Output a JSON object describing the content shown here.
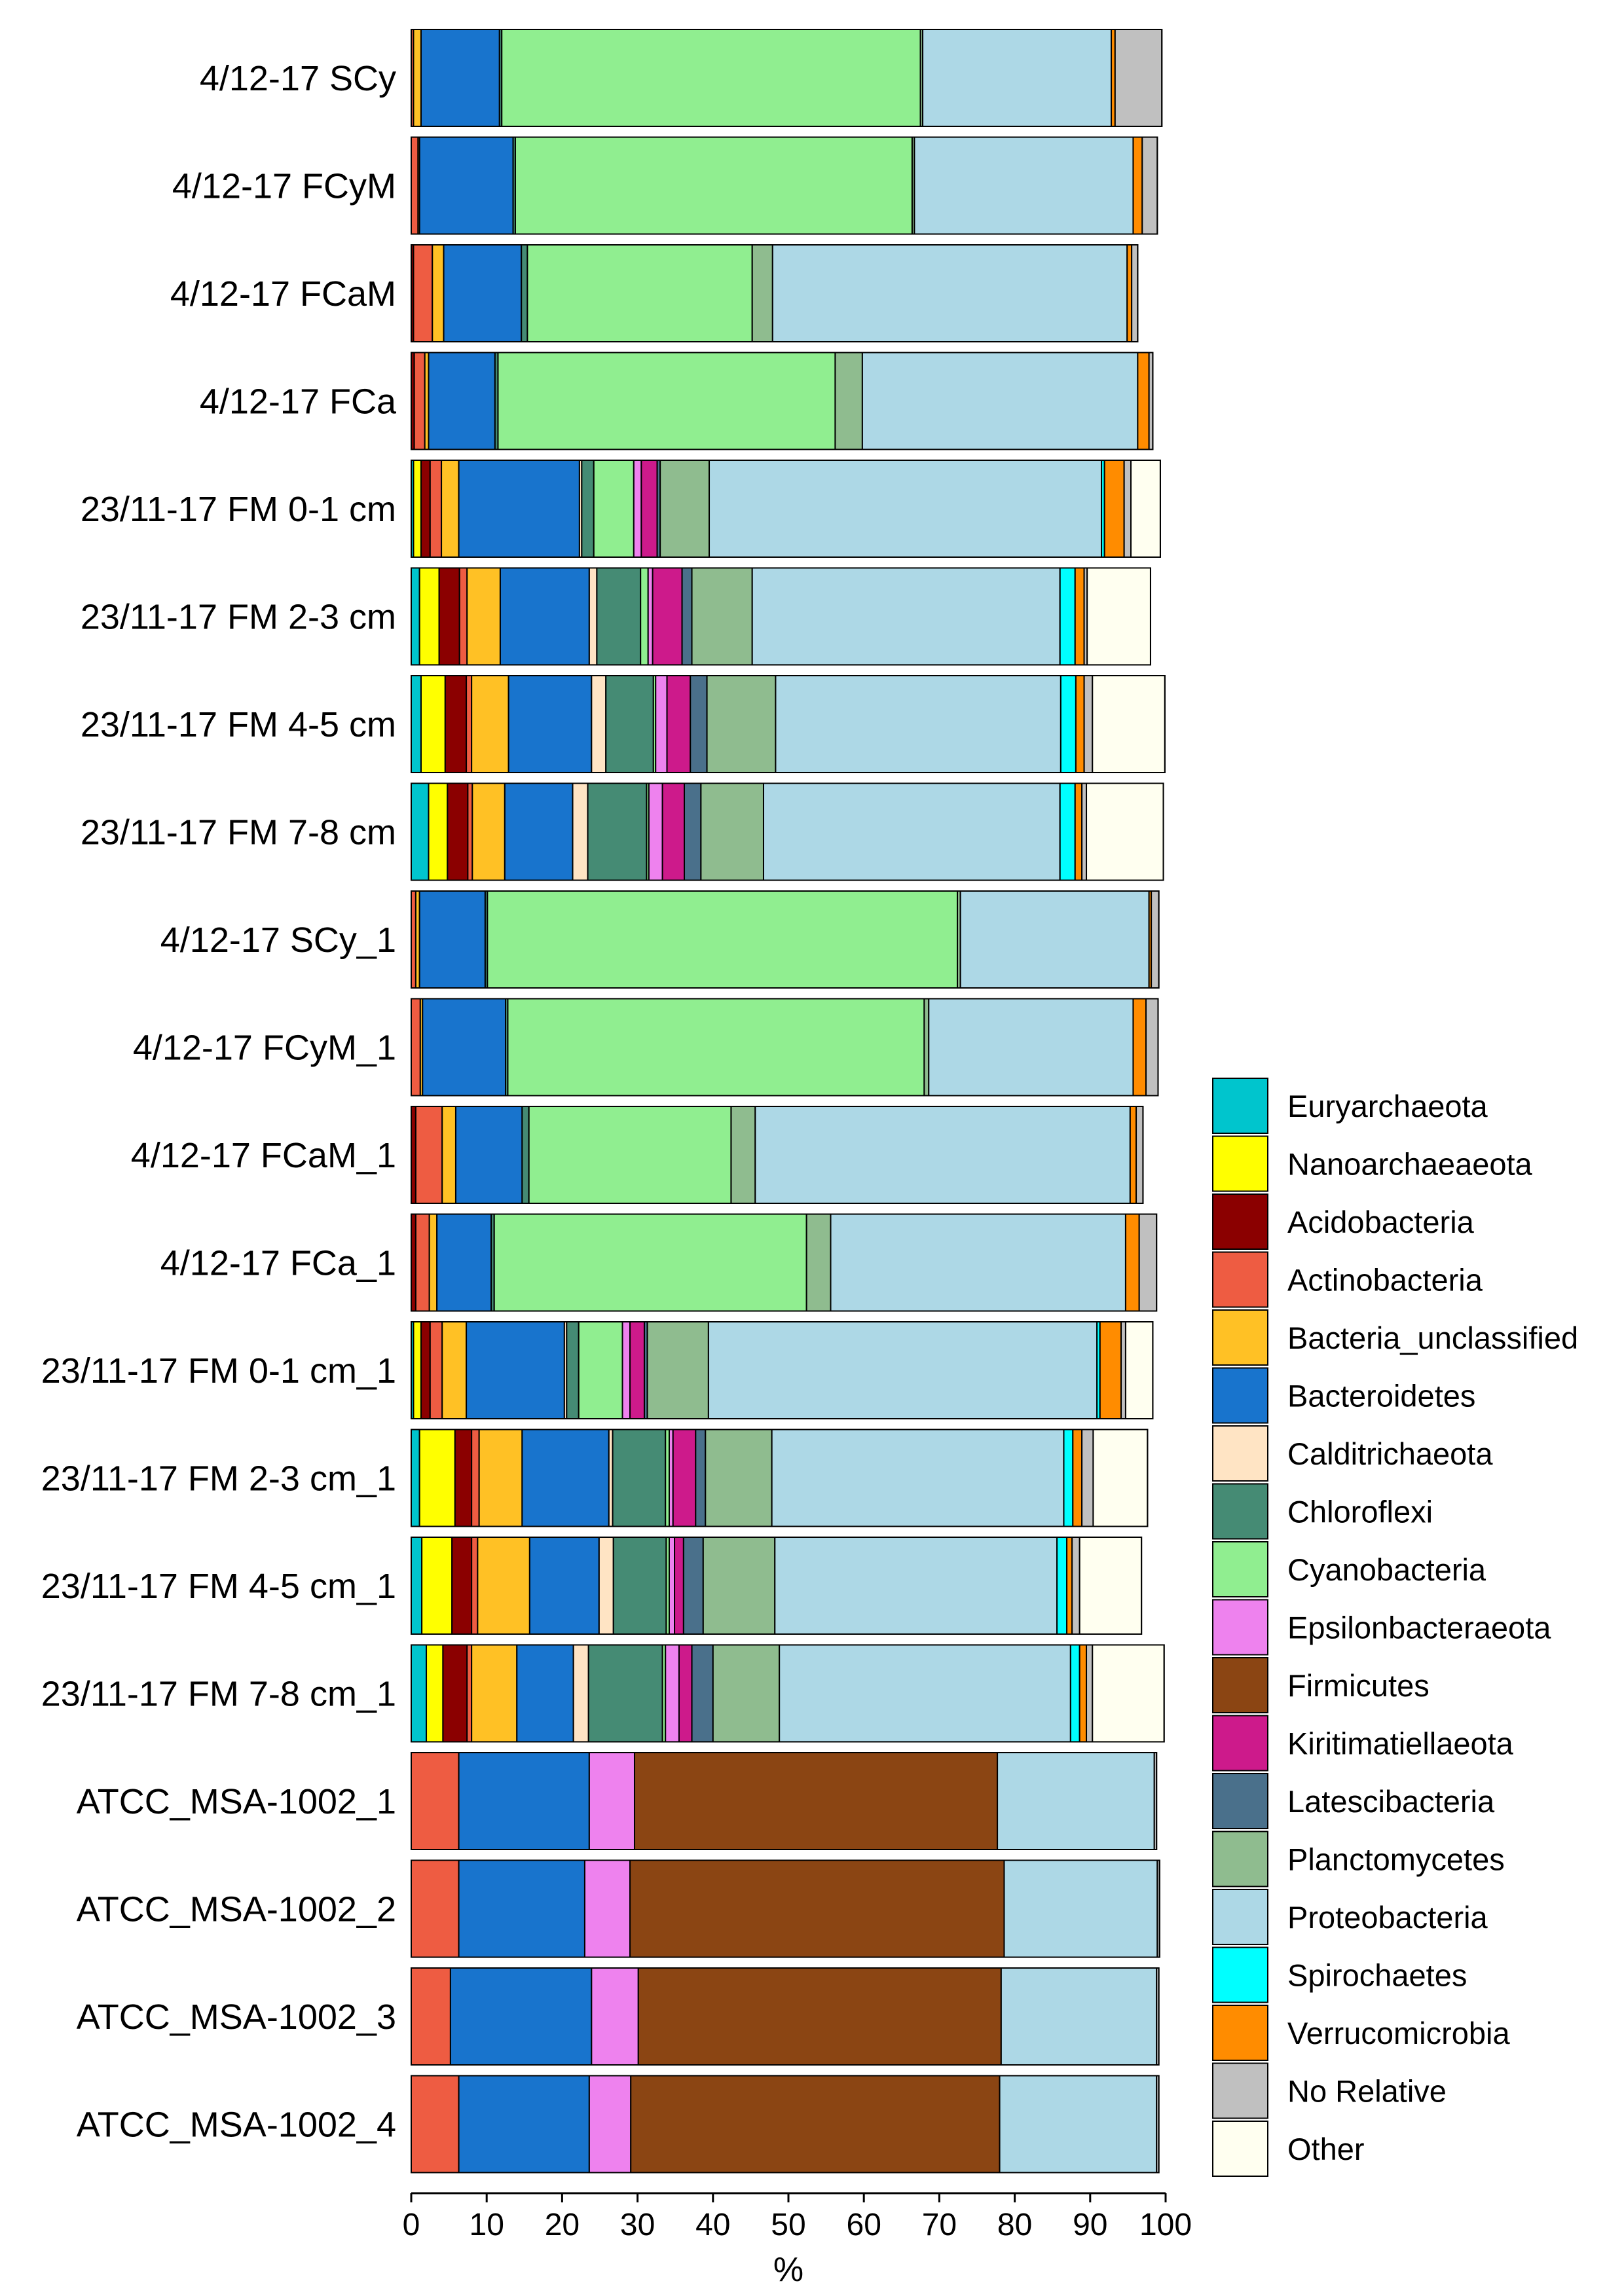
{
  "chart_data": {
    "type": "bar",
    "orientation": "horizontal",
    "stacked": true,
    "xlabel": "%",
    "ylabel": "",
    "xlim": [
      0,
      100
    ],
    "xticks": [
      0,
      10,
      20,
      30,
      40,
      50,
      60,
      70,
      80,
      90,
      100
    ],
    "grid": false,
    "legend_position": "right",
    "categories": [
      "4/12-17 SCy",
      "4/12-17 FCyM",
      "4/12-17 FCaM",
      "4/12-17 FCa",
      "23/11-17 FM 0-1 cm",
      "23/11-17 FM 2-3 cm",
      "23/11-17 FM 4-5 cm",
      "23/11-17 FM 7-8 cm",
      "4/12-17 SCy_1",
      "4/12-17 FCyM_1",
      "4/12-17 FCaM_1",
      "4/12-17 FCa_1",
      "23/11-17 FM 0-1 cm_1",
      "23/11-17 FM 2-3 cm_1",
      "23/11-17 FM 4-5 cm_1",
      "23/11-17 FM 7-8 cm_1",
      "ATCC_MSA-1002_1",
      "ATCC_MSA-1002_2",
      "ATCC_MSA-1002_3",
      "ATCC_MSA-1002_4"
    ],
    "series": [
      {
        "name": "Euryarchaeota",
        "color": "#00C5CD",
        "values": [
          0,
          0,
          0,
          0,
          0.3,
          1.1,
          1.3,
          2.3,
          0,
          0,
          0,
          0,
          0.3,
          1.1,
          1.4,
          2.0,
          0,
          0,
          0,
          0
        ]
      },
      {
        "name": "Nanoarchaeaeota",
        "color": "#FFFF00",
        "values": [
          0,
          0,
          0,
          0,
          1.0,
          2.6,
          3.2,
          2.5,
          0,
          0,
          0,
          0,
          1.0,
          4.7,
          4.0,
          2.2,
          0,
          0,
          0,
          0
        ]
      },
      {
        "name": "Acidobacteria",
        "color": "#8B0000",
        "values": [
          0,
          0,
          0.3,
          0.4,
          1.2,
          2.7,
          2.8,
          2.7,
          0,
          0,
          0.6,
          0.6,
          1.2,
          2.2,
          2.6,
          3.2,
          0,
          0,
          0,
          0
        ]
      },
      {
        "name": "Actinobacteria",
        "color": "#EE5C42",
        "values": [
          0.3,
          0.9,
          2.5,
          1.4,
          1.5,
          1.0,
          0.7,
          0.6,
          0.6,
          1.2,
          3.5,
          1.8,
          1.6,
          1.0,
          0.8,
          0.6,
          6.3,
          6.3,
          5.2,
          6.3
        ]
      },
      {
        "name": "Bacteria_unclassified",
        "color": "#FFC125",
        "values": [
          1.0,
          0.2,
          1.5,
          0.5,
          2.3,
          4.4,
          4.9,
          4.3,
          0.5,
          0.3,
          1.8,
          1.0,
          3.2,
          5.7,
          6.9,
          6.0,
          0,
          0,
          0,
          0
        ]
      },
      {
        "name": "Bacteroidetes",
        "color": "#1874CD",
        "values": [
          10.4,
          12.4,
          10.3,
          8.8,
          16.0,
          11.8,
          11.0,
          9.0,
          8.7,
          11.0,
          8.8,
          7.2,
          13.0,
          11.5,
          9.2,
          7.5,
          17.3,
          16.7,
          18.7,
          17.3
        ]
      },
      {
        "name": "Calditrichaeota",
        "color": "#FFE4C4",
        "values": [
          0,
          0,
          0,
          0,
          0.3,
          1.0,
          1.9,
          2.0,
          0,
          0,
          0,
          0,
          0.3,
          0.5,
          1.9,
          2.0,
          0,
          0,
          0,
          0
        ]
      },
      {
        "name": "Chloroflexi",
        "color": "#458B74",
        "values": [
          0.3,
          0.3,
          0.8,
          0.4,
          1.6,
          5.8,
          6.3,
          7.8,
          0.3,
          0.3,
          0.9,
          0.4,
          1.6,
          7.0,
          7.0,
          9.8,
          0,
          0,
          0,
          0
        ]
      },
      {
        "name": "Cyanobacteria",
        "color": "#90EE90",
        "values": [
          55.5,
          52.6,
          29.8,
          44.7,
          5.3,
          1.0,
          0.3,
          0.3,
          62.3,
          55.2,
          26.8,
          41.4,
          5.8,
          0.5,
          0.4,
          0.4,
          0,
          0,
          0,
          0
        ]
      },
      {
        "name": "Epsilonbacteraeota",
        "color": "#EE82EE",
        "values": [
          0,
          0,
          0,
          0,
          1.0,
          0.6,
          1.5,
          1.8,
          0,
          0,
          0,
          0,
          1.0,
          0.5,
          0.7,
          1.8,
          6.0,
          6.0,
          6.2,
          5.5
        ]
      },
      {
        "name": "Firmicutes",
        "color": "#8B4513",
        "values": [
          0,
          0,
          0,
          0,
          0,
          0,
          0,
          0,
          0,
          0,
          0,
          0,
          0,
          0,
          0,
          0,
          48.1,
          49.6,
          48.1,
          48.9
        ]
      },
      {
        "name": "Kiritimatiellaeota",
        "color": "#CD1A8B",
        "values": [
          0,
          0,
          0,
          0,
          2.1,
          3.9,
          3.1,
          2.9,
          0,
          0,
          0,
          0,
          1.9,
          3.0,
          1.2,
          1.7,
          0,
          0,
          0,
          0
        ]
      },
      {
        "name": "Latescibacteria",
        "color": "#4A708B",
        "values": [
          0,
          0,
          0,
          0,
          0.4,
          1.3,
          2.2,
          2.2,
          0,
          0,
          0,
          0,
          0.4,
          1.3,
          2.6,
          2.8,
          0,
          0,
          0,
          0
        ]
      },
      {
        "name": "Planctomycetes",
        "color": "#8FBC8F",
        "values": [
          0.3,
          0.3,
          2.7,
          3.6,
          6.5,
          8.0,
          9.1,
          8.3,
          0.4,
          0.6,
          3.2,
          3.2,
          8.1,
          8.8,
          9.5,
          8.8,
          0,
          0,
          0,
          0
        ]
      },
      {
        "name": "Proteobacteria",
        "color": "#ADD8E6",
        "values": [
          25.0,
          29.0,
          47.0,
          36.5,
          52.0,
          40.8,
          37.8,
          39.3,
          25.0,
          27.1,
          49.7,
          39.1,
          51.5,
          38.7,
          37.4,
          38.6,
          20.8,
          20.3,
          20.6,
          20.8
        ]
      },
      {
        "name": "Spirochaetes",
        "color": "#00FFFF",
        "values": [
          0,
          0,
          0,
          0,
          0.4,
          2.0,
          2.0,
          2.0,
          0,
          0,
          0,
          0,
          0.4,
          1.2,
          1.3,
          1.2,
          0,
          0,
          0,
          0
        ]
      },
      {
        "name": "Verrucomicrobia",
        "color": "#FF8C00",
        "values": [
          0.5,
          1.2,
          0.6,
          1.5,
          2.6,
          1.2,
          1.1,
          0.9,
          0.3,
          1.7,
          0.8,
          1.8,
          2.8,
          1.2,
          0.7,
          0.9,
          0,
          0,
          0,
          0
        ]
      },
      {
        "name": "No Relative",
        "color": "#C0C0C0",
        "values": [
          6.2,
          2.0,
          0.8,
          0.5,
          0.9,
          0.4,
          1.1,
          0.6,
          1.0,
          1.6,
          0.9,
          2.3,
          0.6,
          1.5,
          1.0,
          0.8,
          0.3,
          0.3,
          0.3,
          0.3
        ]
      },
      {
        "name": "Other",
        "color": "#FFFFF0",
        "values": [
          0,
          0,
          0,
          0,
          3.9,
          8.4,
          9.6,
          10.2,
          0,
          0,
          0,
          0,
          3.6,
          7.2,
          8.2,
          9.5,
          0,
          0,
          0,
          0
        ]
      }
    ]
  }
}
